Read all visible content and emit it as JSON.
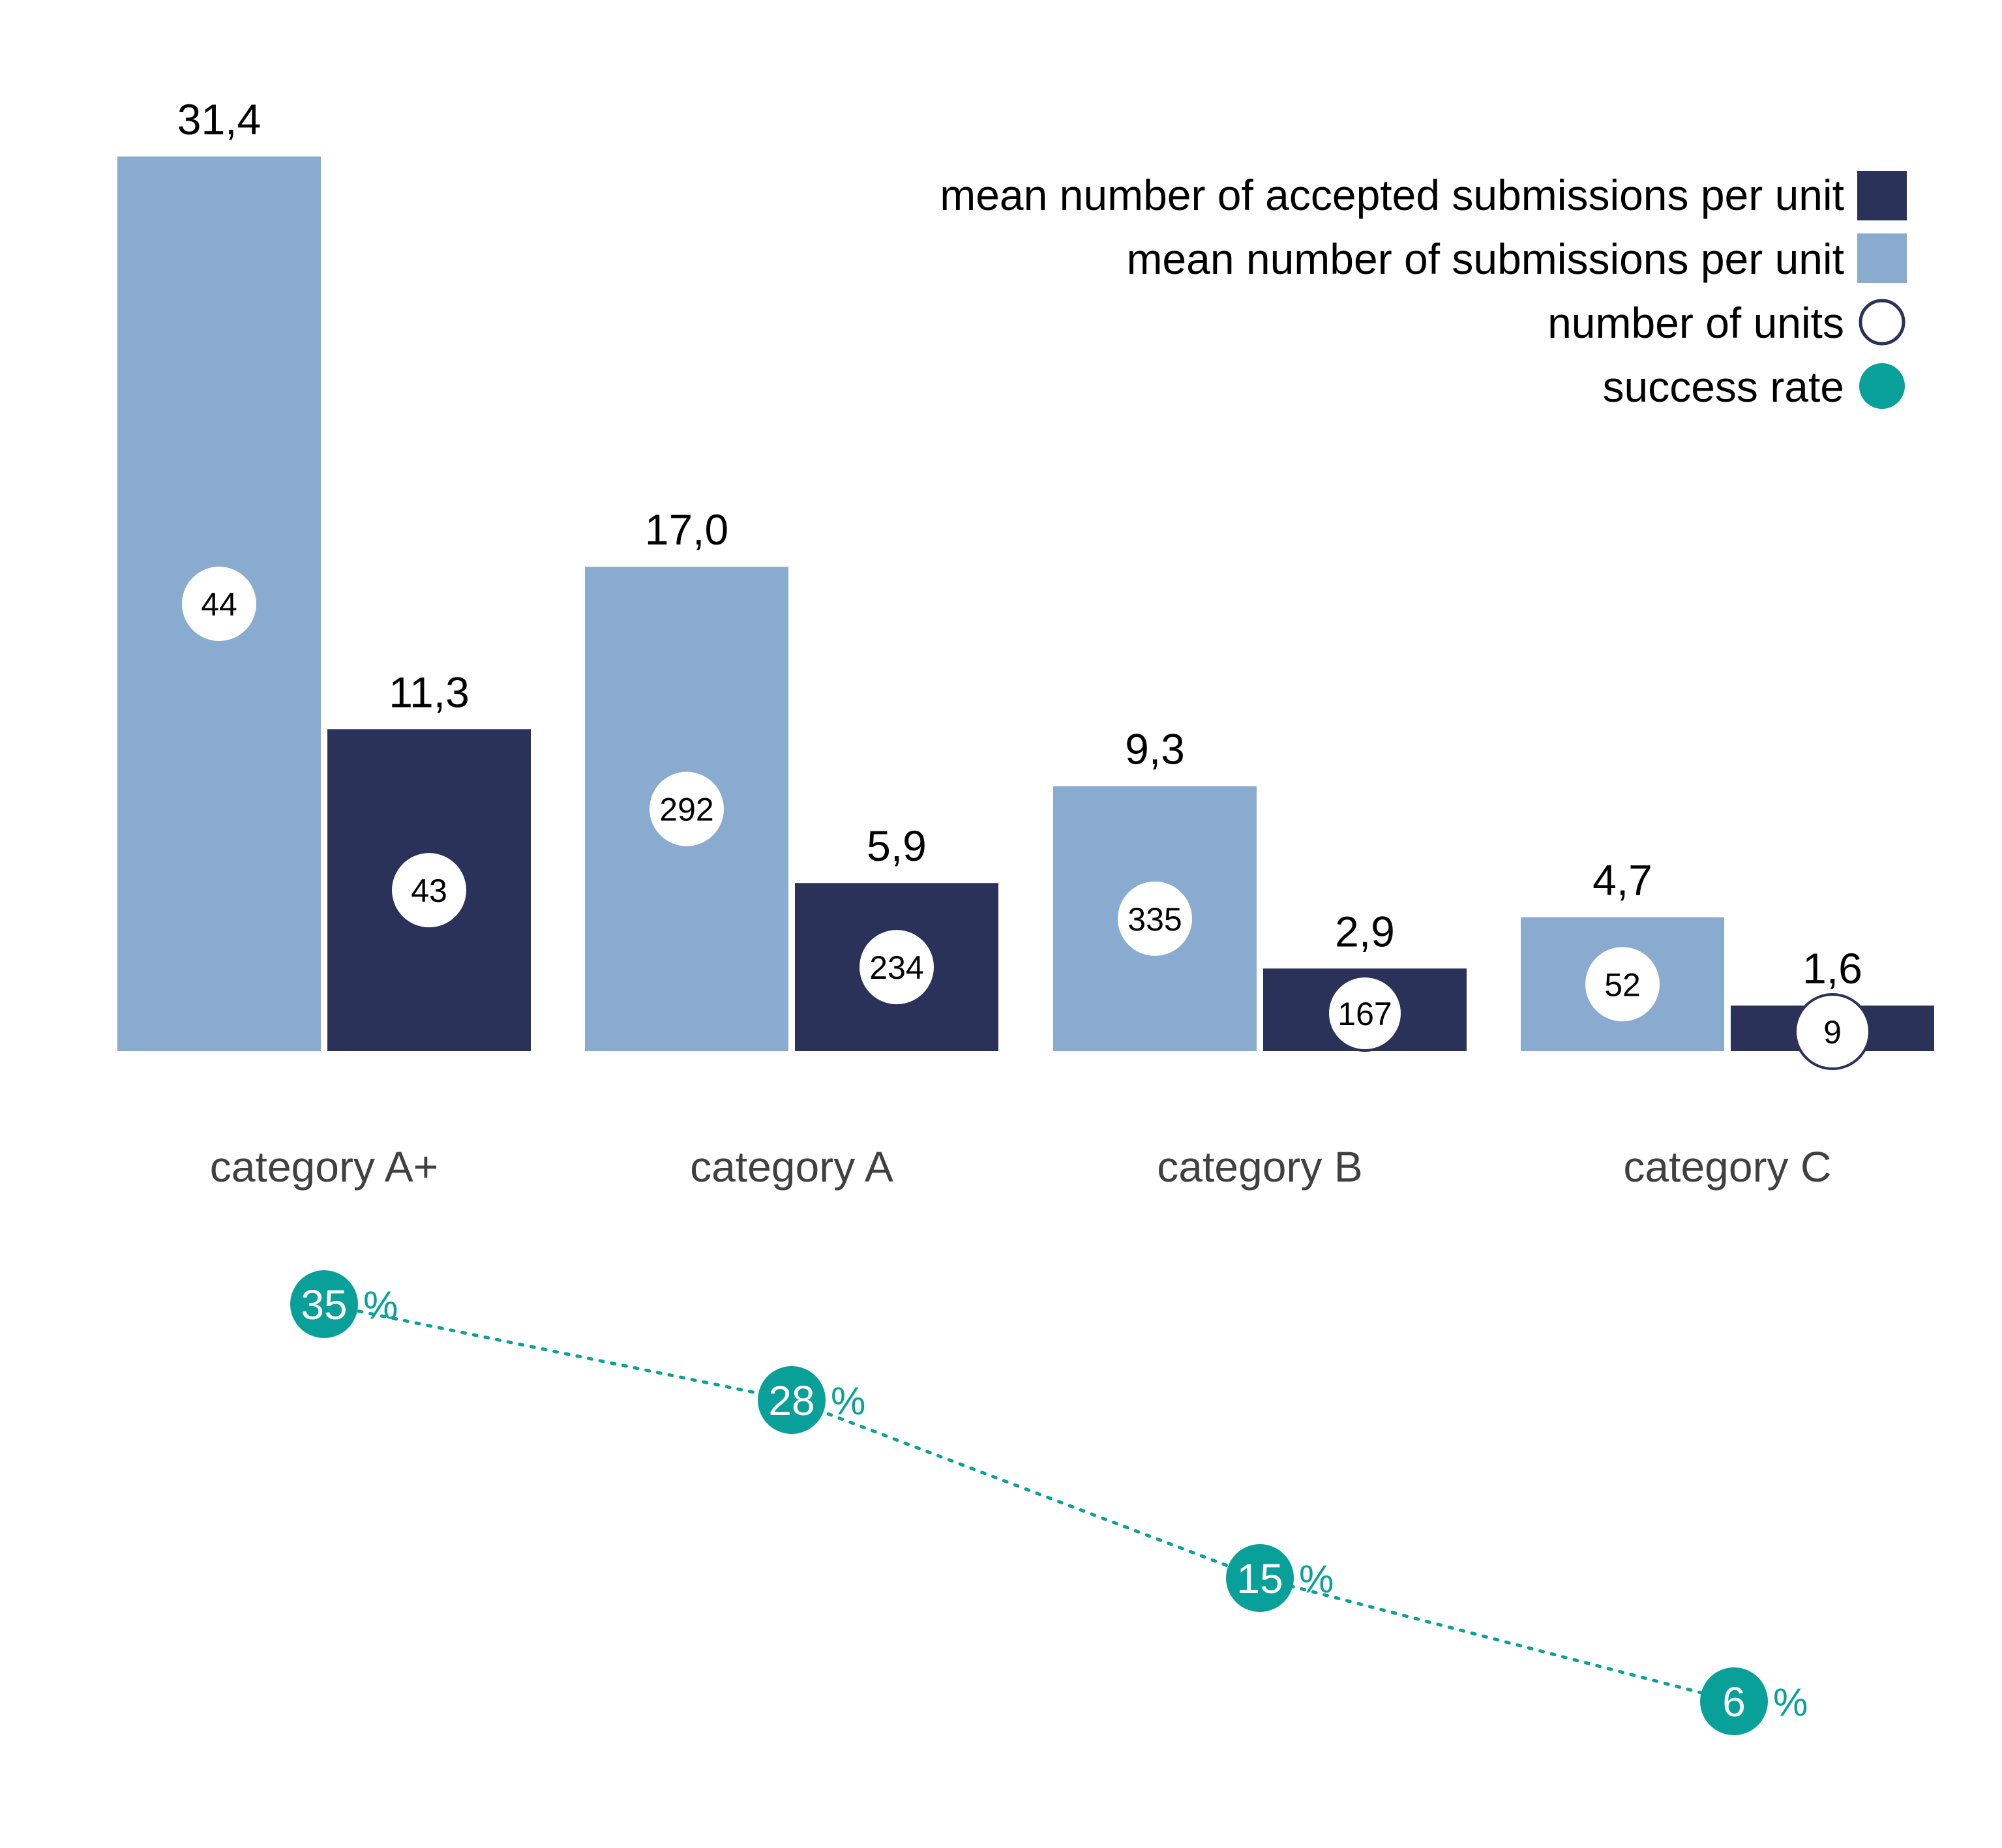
{
  "colors": {
    "submissions": "#8aabd0",
    "accepted": "#2b325a",
    "units_marker_fill": "#ffffff",
    "units_marker_stroke": "#2b325a",
    "success_rate": "#0aa09a",
    "category_text": "#404040"
  },
  "chart_data": {
    "type": "bar",
    "categories": [
      "category A+",
      "category A",
      "category B",
      "category C"
    ],
    "series": [
      {
        "name": "mean number of submissions per unit",
        "values": [
          31.4,
          17.0,
          9.3,
          4.7
        ],
        "labels": [
          "31,4",
          "17,0",
          "9,3",
          "4,7"
        ],
        "units": [
          44,
          292,
          335,
          52
        ]
      },
      {
        "name": "mean number of accepted submissions per unit",
        "values": [
          11.3,
          5.9,
          2.9,
          1.6
        ],
        "labels": [
          "11,3",
          "5,9",
          "2,9",
          "1,6"
        ],
        "units": [
          43,
          234,
          167,
          9
        ]
      }
    ],
    "units_legend": "number of units",
    "success_rate": {
      "name": "success rate",
      "values": [
        35,
        28,
        15,
        6
      ],
      "unit": "%"
    },
    "ylim": [
      0,
      31.4
    ],
    "legend_position": "top-right",
    "grid": false
  }
}
